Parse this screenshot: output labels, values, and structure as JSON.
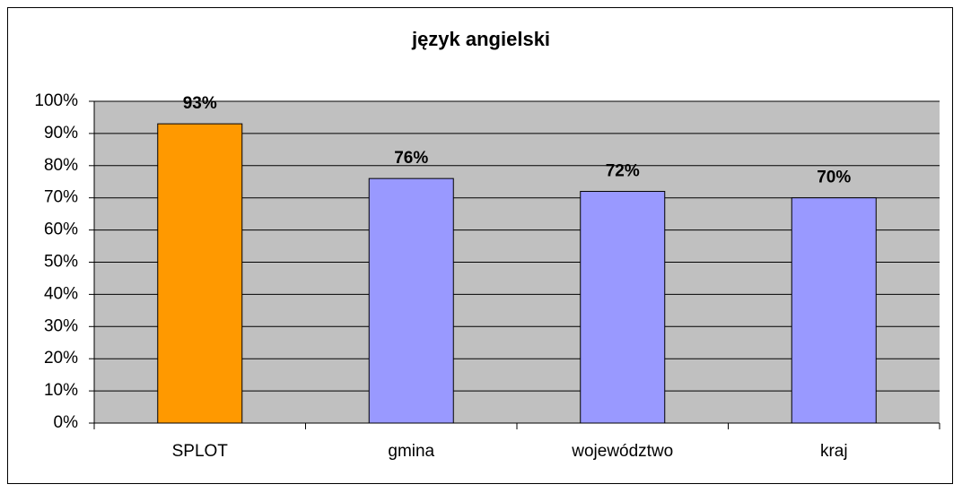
{
  "chart_data": {
    "type": "bar",
    "title": "język angielski",
    "categories": [
      "SPLOT",
      "gmina",
      "województwo",
      "kraj"
    ],
    "values": [
      93,
      76,
      72,
      70
    ],
    "value_labels": [
      "93%",
      "76%",
      "72%",
      "70%"
    ],
    "colors": [
      "#ff9900",
      "#9999ff",
      "#9999ff",
      "#9999ff"
    ],
    "ylim": [
      0,
      100
    ],
    "yticks": [
      {
        "value": 0,
        "label": "0%"
      },
      {
        "value": 10,
        "label": "10%"
      },
      {
        "value": 20,
        "label": "20%"
      },
      {
        "value": 30,
        "label": "30%"
      },
      {
        "value": 40,
        "label": "40%"
      },
      {
        "value": 50,
        "label": "50%"
      },
      {
        "value": 60,
        "label": "60%"
      },
      {
        "value": 70,
        "label": "70%"
      },
      {
        "value": 80,
        "label": "80%"
      },
      {
        "value": 90,
        "label": "90%"
      },
      {
        "value": 100,
        "label": "100%"
      }
    ],
    "grid": true
  }
}
